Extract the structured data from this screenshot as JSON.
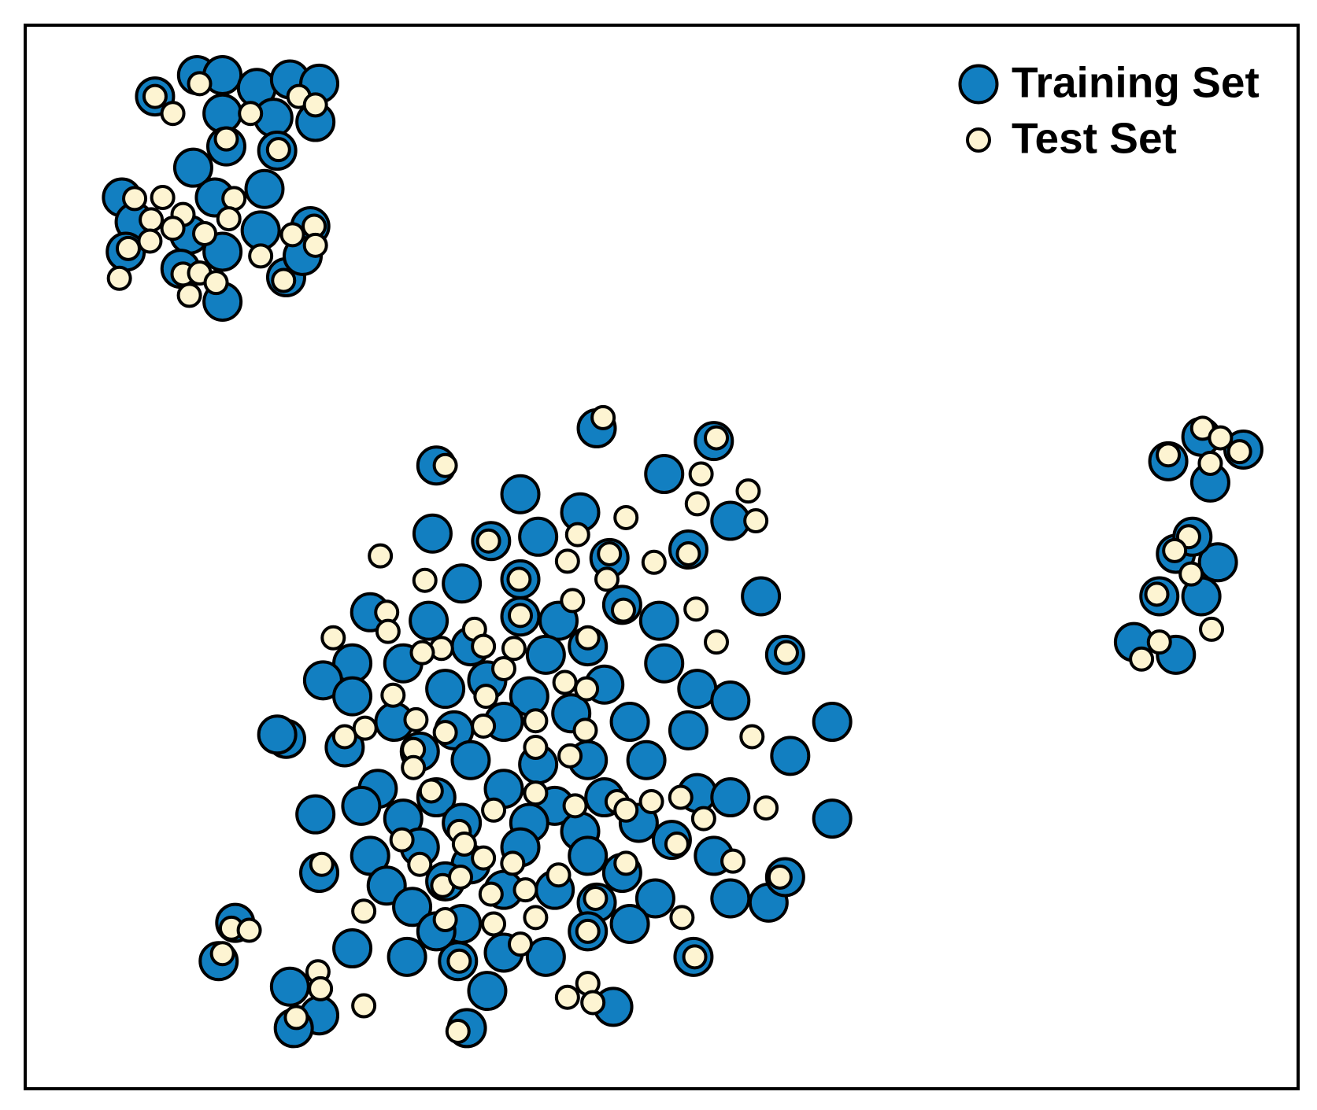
{
  "chart_data": {
    "type": "scatter",
    "legend": "upper right",
    "xlim": [
      0,
      100
    ],
    "ylim": [
      0,
      100
    ],
    "series": [
      {
        "name": "Training Set",
        "color": "#127fc1",
        "x": [
          10.2,
          13.5,
          15.5,
          18.2,
          20.8,
          23.1,
          22.8,
          15.5,
          19.5,
          15.8,
          19.8,
          13.2,
          18.8,
          7.6,
          14.9,
          8.6,
          12.9,
          15.5,
          18.5,
          22.4,
          7.9,
          12.2,
          15.5,
          20.5,
          21.8,
          89.8,
          93.1,
          95.7,
          92.4,
          90.4,
          93.7,
          89.1,
          92.4,
          87.1,
          90.4,
          91.7,
          32.3,
          38.9,
          32.0,
          36.6,
          43.6,
          50.2,
          54.1,
          55.4,
          44.9,
          34.3,
          38.9,
          57.8,
          27.1,
          31.7,
          38.9,
          41.9,
          46.9,
          49.8,
          25.7,
          29.7,
          35.0,
          40.9,
          44.2,
          50.2,
          23.4,
          25.7,
          33.0,
          36.3,
          39.6,
          45.5,
          52.8,
          55.4,
          29.0,
          33.7,
          37.6,
          42.9,
          47.5,
          52.1,
          63.4,
          20.5,
          25.1,
          31.0,
          35.0,
          40.3,
          44.2,
          48.8,
          60.1,
          27.7,
          32.3,
          37.6,
          41.6,
          45.5,
          52.8,
          55.4,
          22.8,
          26.4,
          29.7,
          34.3,
          39.6,
          43.6,
          48.2,
          63.4,
          27.1,
          31.0,
          35.0,
          38.9,
          44.2,
          50.8,
          54.1,
          23.1,
          28.4,
          33.0,
          37.6,
          41.6,
          46.9,
          55.4,
          58.4,
          30.4,
          34.3,
          44.9,
          49.5,
          25.7,
          30.0,
          34.0,
          37.6,
          40.9,
          36.3,
          46.2,
          44.2,
          52.5,
          32.3,
          16.5,
          15.2,
          20.8,
          23.1,
          21.1,
          34.7,
          59.7,
          47.5,
          19.8,
          52.1,
          45.9,
          40.3,
          59.7
        ],
        "y": [
          93.3,
          95.3,
          95.3,
          94.1,
          94.9,
          94.5,
          90.9,
          91.7,
          91.3,
          88.6,
          88.2,
          86.6,
          84.6,
          83.8,
          83.8,
          81.5,
          80.3,
          78.7,
          80.7,
          81.1,
          78.7,
          77.1,
          74.0,
          76.3,
          78.3,
          59.0,
          57.0,
          60.1,
          61.3,
          50.3,
          49.5,
          46.3,
          46.3,
          42.0,
          40.8,
          51.9,
          58.6,
          55.9,
          52.2,
          51.5,
          54.2,
          57.8,
          60.9,
          53.4,
          62.1,
          47.5,
          47.9,
          46.3,
          44.8,
          44.0,
          44.4,
          44.0,
          45.5,
          44.0,
          40.0,
          40.0,
          41.6,
          40.8,
          41.6,
          40.0,
          38.4,
          36.9,
          37.6,
          38.4,
          36.9,
          38.0,
          37.6,
          36.5,
          34.5,
          33.7,
          34.5,
          35.3,
          34.5,
          33.7,
          34.5,
          32.9,
          32.1,
          31.7,
          30.9,
          30.5,
          30.9,
          30.9,
          31.3,
          28.2,
          27.4,
          28.2,
          26.6,
          27.4,
          27.8,
          27.4,
          25.8,
          26.6,
          25.4,
          25.0,
          25.0,
          24.2,
          25.0,
          25.4,
          21.9,
          22.7,
          21.1,
          22.7,
          21.9,
          23.4,
          21.9,
          20.3,
          19.1,
          19.5,
          18.7,
          18.7,
          20.3,
          17.9,
          17.5,
          17.1,
          15.5,
          17.5,
          17.9,
          13.2,
          12.4,
          12.0,
          12.8,
          12.4,
          9.2,
          7.7,
          14.8,
          12.4,
          14.8,
          15.6,
          12.0,
          9.6,
          6.9,
          5.7,
          5.7,
          19.9,
          15.5,
          33.3,
          50.7,
          49.9,
          51.9,
          40.8
        ]
      },
      {
        "name": "Test Set",
        "color": "#fdf4d2",
        "x": [
          10.2,
          11.6,
          13.7,
          17.7,
          21.5,
          22.8,
          15.8,
          19.9,
          8.6,
          10.8,
          16.4,
          9.9,
          12.4,
          16.0,
          11.6,
          14.1,
          9.8,
          8.1,
          21.0,
          22.7,
          22.8,
          18.5,
          7.4,
          12.4,
          13.7,
          15.0,
          12.9,
          20.3,
          89.8,
          92.5,
          93.9,
          95.4,
          93.1,
          91.4,
          90.3,
          91.6,
          88.9,
          93.2,
          89.1,
          87.7,
          33.0,
          45.4,
          54.3,
          53.1,
          52.8,
          56.8,
          57.4,
          47.2,
          43.4,
          36.4,
          45.9,
          49.4,
          52.1,
          27.9,
          42.6,
          38.8,
          31.4,
          45.7,
          43.0,
          52.7,
          28.4,
          28.5,
          35.3,
          38.9,
          47.0,
          24.2,
          32.7,
          36.0,
          38.4,
          44.2,
          54.3,
          59.8,
          37.6,
          31.2,
          42.4,
          44.1,
          28.9,
          36.2,
          40.1,
          30.7,
          36.0,
          33.0,
          25.1,
          26.7,
          44.0,
          57.1,
          30.5,
          42.8,
          30.5,
          40.1,
          31.9,
          40.1,
          46.5,
          49.2,
          51.5,
          58.2,
          36.8,
          43.2,
          53.3,
          47.2,
          34.1,
          29.6,
          34.5,
          51.2,
          36.0,
          38.3,
          31.0,
          23.3,
          55.6,
          47.2,
          32.8,
          34.2,
          36.6,
          39.3,
          41.9,
          59.3,
          44.8,
          26.6,
          33.0,
          40.1,
          51.6,
          36.8,
          44.2,
          38.9,
          52.6,
          34.1,
          16.2,
          17.6,
          15.5,
          23.0,
          23.2,
          26.6,
          21.3,
          44.2,
          42.6,
          34.0,
          44.6
        ],
        "y": [
          93.3,
          91.7,
          94.5,
          91.7,
          93.3,
          92.5,
          89.3,
          88.3,
          83.7,
          83.8,
          83.7,
          81.7,
          82.2,
          81.8,
          80.9,
          80.4,
          79.7,
          79.0,
          80.3,
          81.1,
          79.3,
          78.3,
          76.2,
          76.6,
          76.7,
          75.8,
          74.6,
          76.0,
          59.6,
          62.1,
          61.2,
          59.9,
          58.8,
          51.9,
          50.6,
          48.4,
          46.5,
          43.2,
          42.0,
          40.4,
          58.6,
          63.1,
          61.2,
          57.8,
          55.0,
          56.2,
          53.4,
          53.7,
          52.1,
          51.5,
          50.3,
          49.5,
          50.3,
          50.1,
          49.6,
          47.9,
          47.8,
          47.9,
          45.9,
          45.1,
          44.8,
          43.0,
          43.2,
          44.5,
          45.0,
          42.4,
          41.4,
          41.6,
          41.4,
          42.4,
          42.0,
          41.0,
          39.5,
          41.0,
          38.2,
          37.6,
          37.0,
          36.9,
          34.6,
          34.7,
          34.1,
          33.5,
          33.1,
          33.9,
          33.7,
          33.1,
          31.9,
          31.3,
          30.2,
          32.1,
          28.0,
          27.8,
          27.0,
          27.0,
          27.4,
          26.4,
          26.2,
          26.6,
          25.4,
          26.2,
          24.2,
          23.4,
          23.0,
          23.0,
          21.7,
          21.2,
          21.1,
          21.1,
          21.4,
          21.2,
          19.1,
          19.9,
          18.3,
          18.7,
          20.1,
          19.9,
          17.9,
          16.7,
          15.9,
          16.1,
          16.1,
          15.5,
          14.8,
          13.6,
          12.4,
          12.0,
          15.1,
          14.9,
          12.7,
          11.0,
          9.4,
          7.8,
          6.7,
          9.9,
          8.6,
          5.4,
          8.1
        ]
      }
    ]
  }
}
